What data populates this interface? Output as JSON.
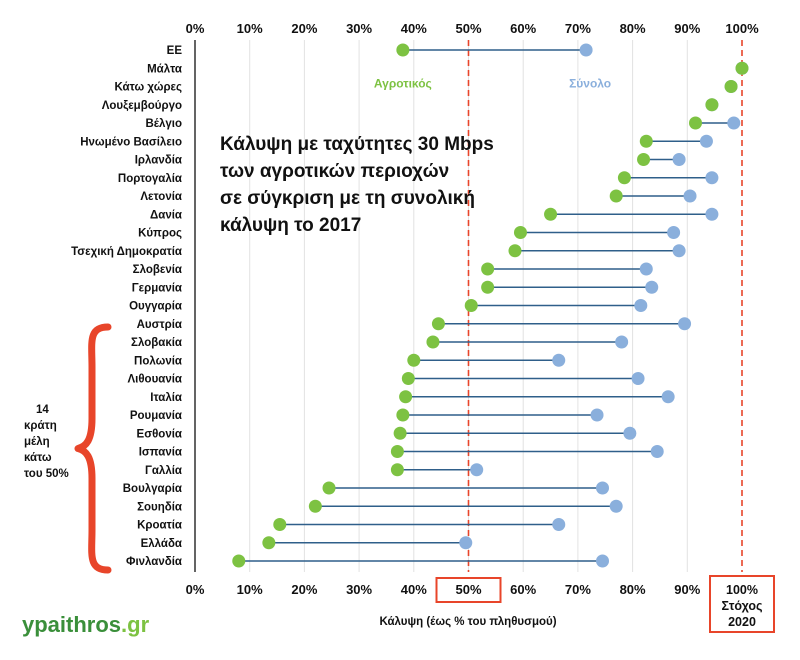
{
  "chart_data": {
    "type": "dumbbell",
    "title_lines": [
      "Κάλυψη με ταχύτητες 30 Mbps",
      "των αγροτικών περιοχών",
      "σε σύγκριση με τη συνολική",
      "κάλυψη το 2017"
    ],
    "xlabel": "Κάλυψη (έως % του πληθυσμού)",
    "x_ticks": [
      "0%",
      "10%",
      "20%",
      "30%",
      "40%",
      "50%",
      "60%",
      "70%",
      "80%",
      "90%",
      "100%"
    ],
    "xlim": [
      0,
      100
    ],
    "series": [
      {
        "name": "Αγροτικός",
        "color": "#7dc242"
      },
      {
        "name": "Σύνολο",
        "color": "#8aafdc"
      }
    ],
    "connector_color": "#2f5f8a",
    "reference_lines": [
      50,
      100
    ],
    "target_label_lines": [
      "100%",
      "Στόχος",
      "2020"
    ],
    "categories": [
      "ΕΕ",
      "Μάλτα",
      "Κάτω χώρες",
      "Λουξεμβούργο",
      "Βέλγιο",
      "Ηνωμένο Βασίλειο",
      "Ιρλανδία",
      "Πορτογαλία",
      "Λετονία",
      "Δανία",
      "Κύπρος",
      "Τσεχική Δημοκρατία",
      "Σλοβενία",
      "Γερμανία",
      "Ουγγαρία",
      "Αυστρία",
      "Σλοβακία",
      "Πολωνία",
      "Λιθουανία",
      "Ιταλία",
      "Ρουμανία",
      "Εσθονία",
      "Ισπανία",
      "Γαλλία",
      "Βουλγαρία",
      "Σουηδία",
      "Κροατία",
      "Ελλάδα",
      "Φινλανδία"
    ],
    "rural": [
      38,
      100,
      98,
      94.5,
      91.5,
      82.5,
      82,
      78.5,
      77,
      65,
      59.5,
      58.5,
      53.5,
      53.5,
      50.5,
      44.5,
      43.5,
      40,
      39,
      38.5,
      38,
      37.5,
      37,
      37,
      24.5,
      22,
      15.5,
      13.5,
      8
    ],
    "total": [
      71.5,
      100,
      98,
      94.5,
      98.5,
      93.5,
      88.5,
      94.5,
      90.5,
      94.5,
      87.5,
      88.5,
      82.5,
      83.5,
      81.5,
      89.5,
      78,
      66.5,
      81,
      86.5,
      73.5,
      79.5,
      84.5,
      51.5,
      74.5,
      77,
      66.5,
      49.5,
      74.5
    ],
    "legend_row": "Μάλτα"
  },
  "annotation": {
    "lines": [
      "14",
      "κράτη",
      "μέλη",
      "κάτω",
      "του 50%"
    ],
    "bracket_color": "#e8452a"
  },
  "logo": {
    "main": "ypaithros",
    "suffix": ".gr",
    "main_color": "#3a8f3a",
    "suffix_color": "#7dc242"
  },
  "highlight_box_color": "#e8452a"
}
